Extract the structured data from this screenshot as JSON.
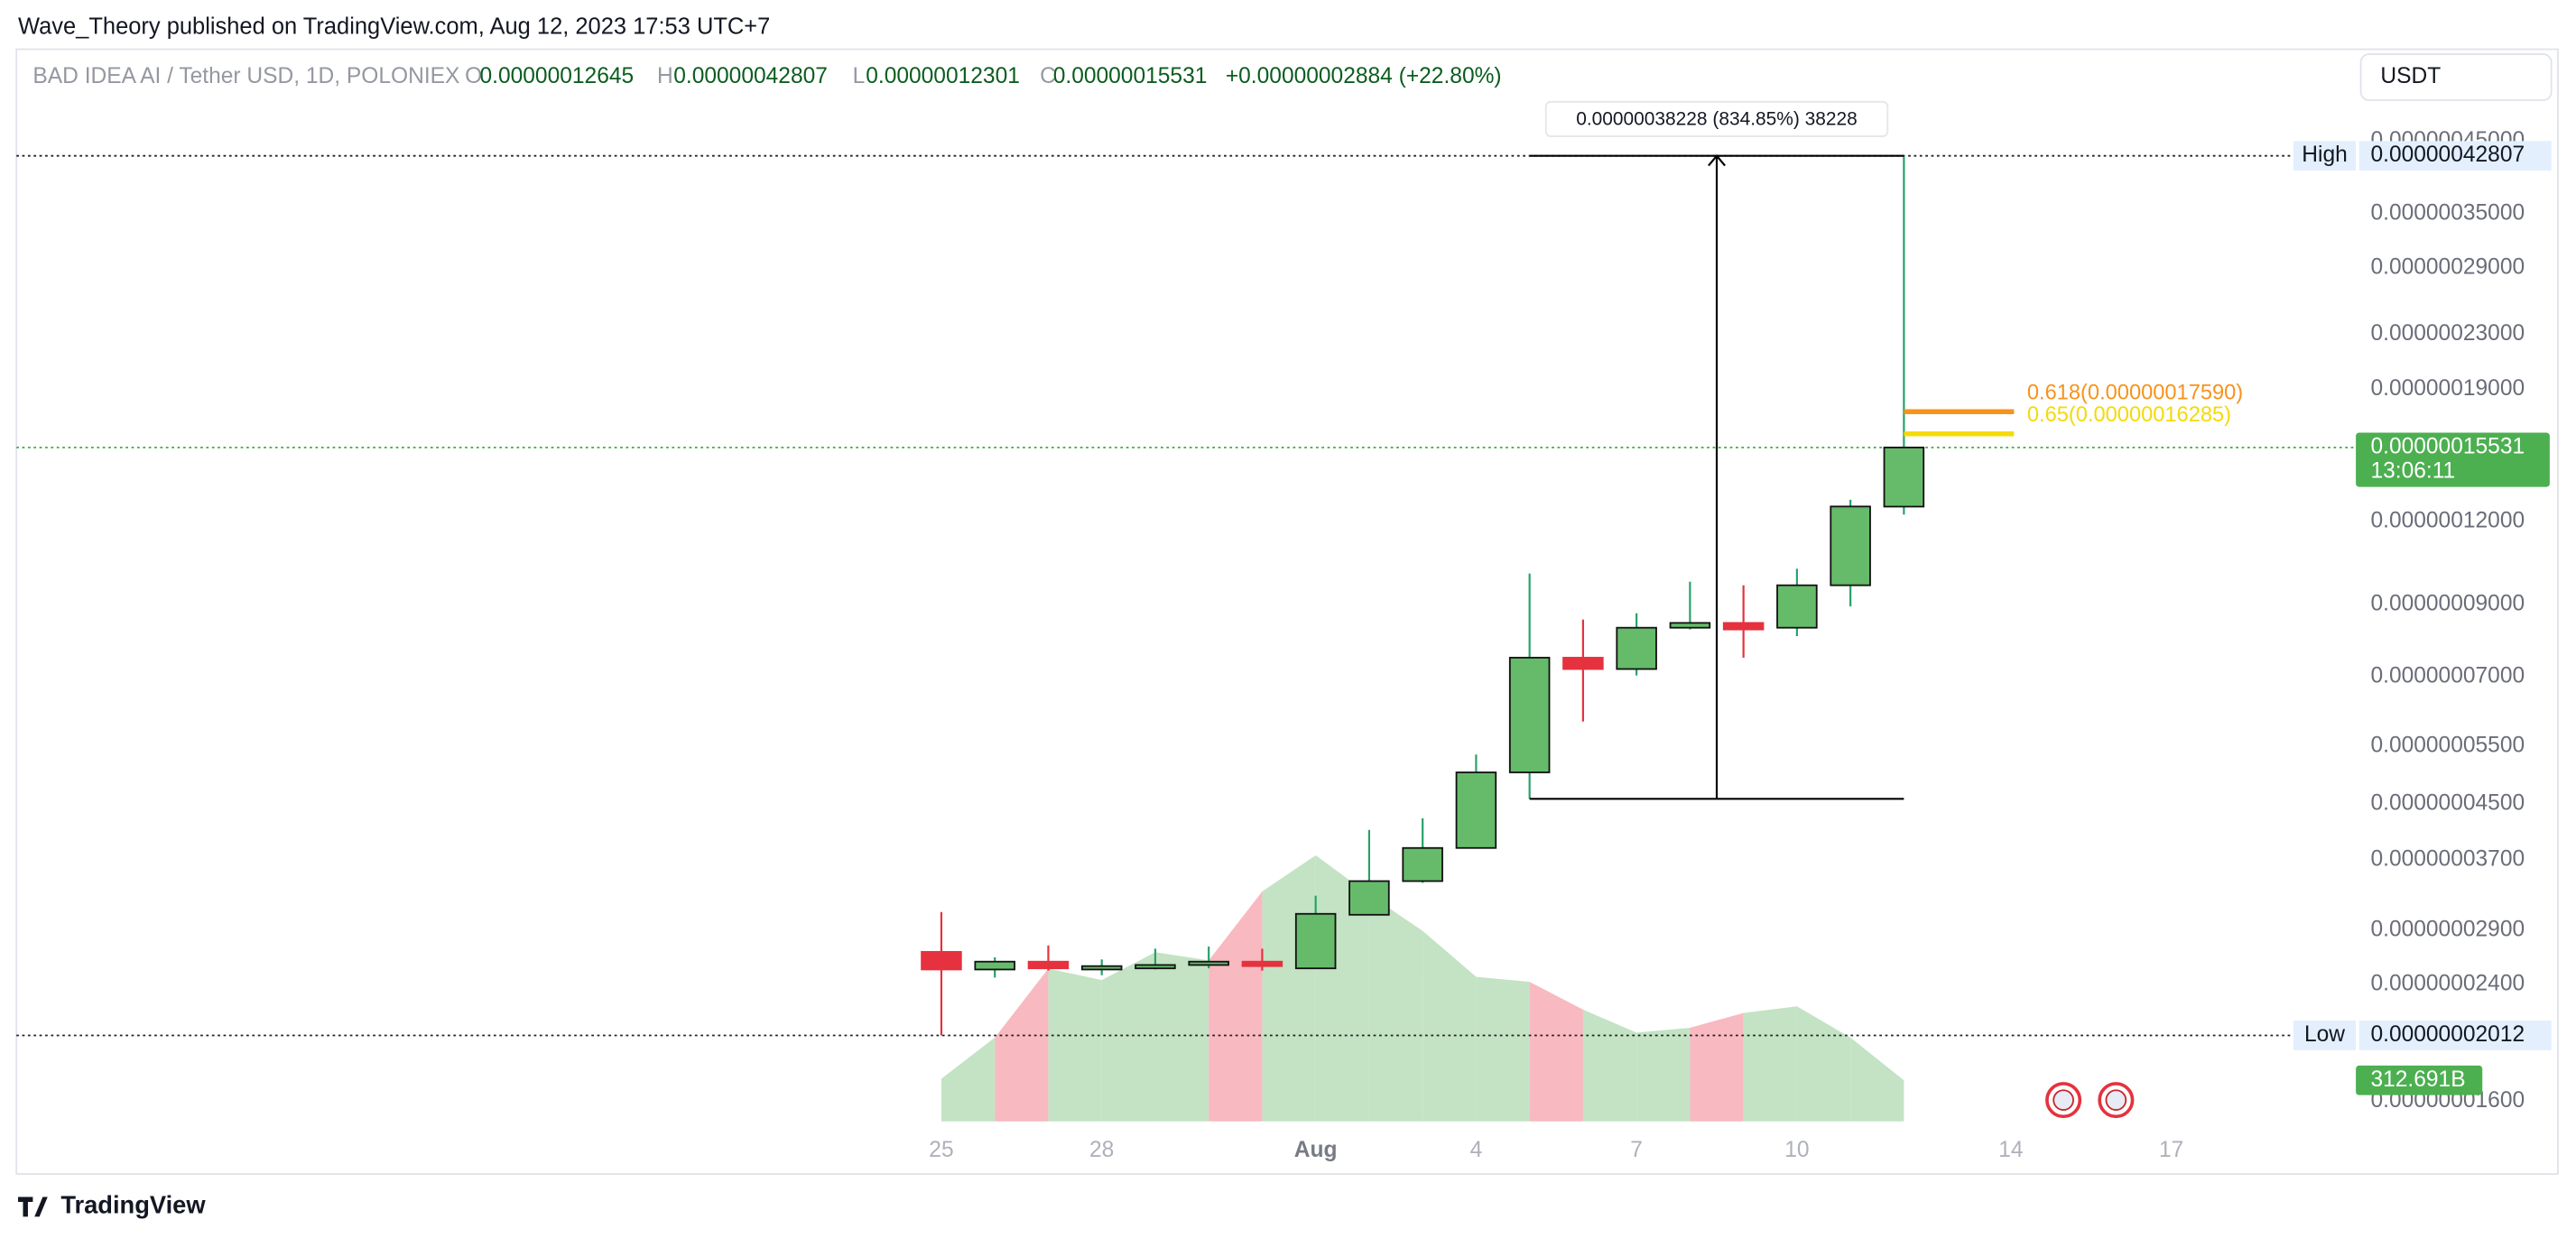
{
  "header": {
    "published": "Wave_Theory published on TradingView.com, Aug 12, 2023 17:53 UTC+7",
    "currency": "USDT",
    "brand": "TradingView"
  },
  "chart_data": {
    "type": "candlestick",
    "title": "BAD IDEA AI / Tether USD, 1D, POLONIEX",
    "ohlc_legend": [
      {
        "key": "O",
        "value": "0.00000012645"
      },
      {
        "key": "H",
        "value": "0.00000042807"
      },
      {
        "key": "L",
        "value": "0.00000012301"
      },
      {
        "key": "C",
        "value": "0.00000015531"
      }
    ],
    "change": "+0.00000002884 (+22.80%)",
    "categories": [
      "25",
      null,
      null,
      "28",
      null,
      null,
      null,
      "Aug",
      null,
      null,
      "4",
      null,
      null,
      "7",
      null,
      null,
      "10",
      null,
      null,
      null,
      "14",
      null,
      null,
      "17",
      null
    ],
    "open": [
      2.69e-08,
      2.53e-08,
      2.6e-08,
      2.53e-08,
      2.54e-08,
      2.57e-08,
      2.6e-08,
      2.54e-08,
      3.06e-08,
      3.44e-08,
      3.86e-08,
      5.02e-08,
      7.48e-08,
      7.19e-08,
      8.3e-08,
      8.44e-08,
      8.3e-08,
      9.62e-08,
      1.2645e-07,
      null,
      null,
      null,
      null,
      null,
      null
    ],
    "high": [
      3.09e-08,
      2.64e-08,
      2.75e-08,
      2.62e-08,
      2.72e-08,
      2.74e-08,
      2.72e-08,
      3.27e-08,
      4.11e-08,
      4.28e-08,
      5.34e-08,
      1.002e-07,
      8.54e-08,
      8.73e-08,
      9.74e-08,
      9.62e-08,
      1.019e-07,
      1.295e-07,
      4.2807e-07,
      null,
      null,
      null,
      null,
      null,
      null
    ],
    "low": [
      2.012e-08,
      2.46e-08,
      2.52e-08,
      2.48e-08,
      2.53e-08,
      2.54e-08,
      2.52e-08,
      2.54e-08,
      3.06e-08,
      3.42e-08,
      3.86e-08,
      4.58e-08,
      5.99e-08,
      7.03e-08,
      8.25e-08,
      7.48e-08,
      8.06e-08,
      8.94e-08,
      1.2301e-07,
      null,
      null,
      null,
      null,
      null,
      null
    ],
    "close": [
      2.53e-08,
      2.6e-08,
      2.54e-08,
      2.56e-08,
      2.57e-08,
      2.6e-08,
      2.56e-08,
      3.07e-08,
      3.44e-08,
      3.86e-08,
      5.02e-08,
      7.48e-08,
      7.19e-08,
      8.3e-08,
      8.44e-08,
      8.25e-08,
      9.62e-08,
      1.265e-07,
      1.5531e-07,
      null,
      null,
      null,
      null,
      null,
      null
    ],
    "up_color": "#66bb6a",
    "down_color": "#e5323e",
    "volume": {
      "values": [
        325,
        638,
        1163,
        1076,
        1288,
        1226,
        1751,
        2026,
        1726,
        1451,
        1101,
        1063,
        851,
        676,
        713,
        826,
        876,
        638,
        312.691,
        null,
        null,
        null,
        null,
        null,
        null
      ],
      "value_labels": [
        null,
        null,
        null,
        null,
        null,
        null,
        null,
        null,
        null,
        null,
        null,
        null,
        null,
        null,
        null,
        null,
        null,
        null,
        "312.691B",
        null,
        null,
        null,
        null,
        null,
        null
      ],
      "ylim": [
        0,
        2500
      ],
      "up_color": "#c3e3c4",
      "down_color": "#f8b9c1"
    },
    "ylim": [
      1.45e-08,
      6.2e-07
    ],
    "log_scale": true,
    "grid": false,
    "yticks": [
      {
        "value": 4.5e-07,
        "label": "0.00000045000"
      },
      {
        "value": 3.5e-07,
        "label": "0.00000035000"
      },
      {
        "value": 2.9e-07,
        "label": "0.00000029000"
      },
      {
        "value": 2.3e-07,
        "label": "0.00000023000"
      },
      {
        "value": 1.9e-07,
        "label": "0.00000019000"
      },
      {
        "value": 1.2e-07,
        "label": "0.00000012000"
      },
      {
        "value": 9e-08,
        "label": "0.00000009000"
      },
      {
        "value": 7e-08,
        "label": "0.00000007000"
      },
      {
        "value": 5.5e-08,
        "label": "0.00000005500"
      },
      {
        "value": 4.5e-08,
        "label": "0.00000004500"
      },
      {
        "value": 3.7e-08,
        "label": "0.00000003700"
      },
      {
        "value": 2.9e-08,
        "label": "0.00000002900"
      },
      {
        "value": 2.4e-08,
        "label": "0.00000002400"
      },
      {
        "value": 1.6e-08,
        "label": "0.00000001600"
      }
    ],
    "price_lines": [
      {
        "name": "High",
        "value": 4.2807e-07,
        "label": "0.00000042807"
      },
      {
        "name": "Low",
        "value": 2.012e-08,
        "label": "0.00000002012"
      }
    ],
    "last_price": {
      "value": 1.5531e-07,
      "label": "0.00000015531",
      "countdown": "13:06:11",
      "color": "#4caf50"
    },
    "fib_levels": [
      {
        "label": "0.618(0.00000017590)",
        "value": 1.759e-07,
        "color": "#f7931a"
      },
      {
        "label": "0.65(0.00000016285)",
        "value": 1.6285e-07,
        "color": "#f5d90a"
      }
    ],
    "measure": {
      "label": "0.00000038228 (834.85%) 38228",
      "from": 4.579e-08,
      "to": 4.2807e-07
    }
  }
}
